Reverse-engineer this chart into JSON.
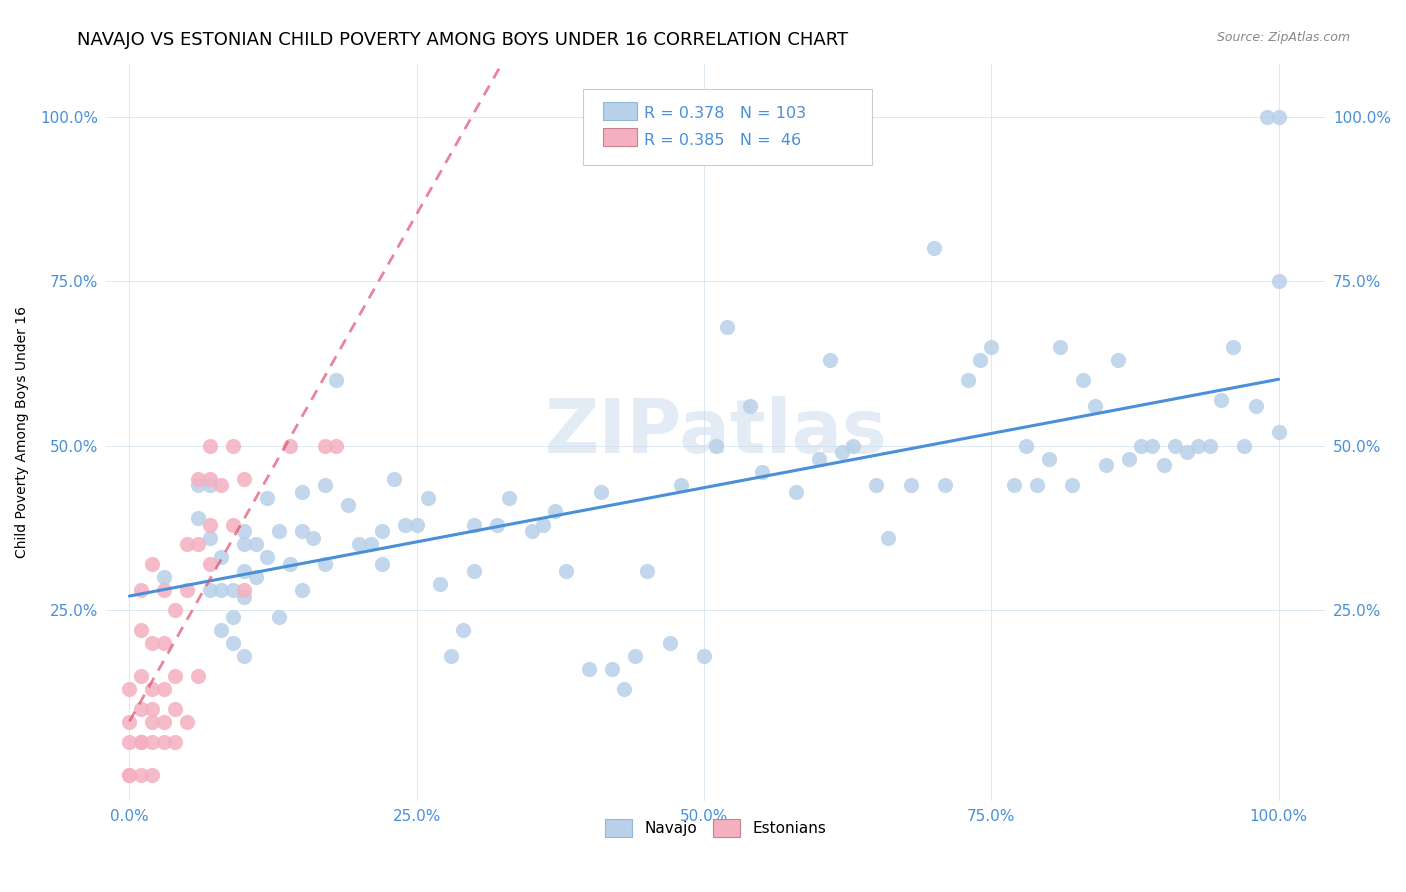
{
  "title": "NAVAJO VS ESTONIAN CHILD POVERTY AMONG BOYS UNDER 16 CORRELATION CHART",
  "source": "Source: ZipAtlas.com",
  "ylabel": "Child Poverty Among Boys Under 16",
  "xlim": [
    -0.02,
    1.04
  ],
  "ylim": [
    -0.04,
    1.08
  ],
  "xtick_labels": [
    "0.0%",
    "25.0%",
    "50.0%",
    "75.0%",
    "100.0%"
  ],
  "xtick_positions": [
    0,
    0.25,
    0.5,
    0.75,
    1.0
  ],
  "ytick_labels": [
    "25.0%",
    "50.0%",
    "75.0%",
    "100.0%"
  ],
  "ytick_positions": [
    0.25,
    0.5,
    0.75,
    1.0
  ],
  "navajo_R": 0.378,
  "navajo_N": 103,
  "estonian_R": 0.385,
  "estonian_N": 46,
  "navajo_color": "#b8d0e8",
  "estonian_color": "#f5b0c0",
  "trend_navajo_color": "#4a90d9",
  "trend_estonian_color": "#e05070",
  "watermark": "ZIPatlas",
  "title_fontsize": 13,
  "navajo_x": [
    0.03,
    0.06,
    0.06,
    0.07,
    0.07,
    0.07,
    0.08,
    0.08,
    0.08,
    0.09,
    0.09,
    0.09,
    0.1,
    0.1,
    0.1,
    0.1,
    0.1,
    0.11,
    0.11,
    0.12,
    0.12,
    0.13,
    0.13,
    0.14,
    0.15,
    0.15,
    0.15,
    0.16,
    0.17,
    0.17,
    0.18,
    0.19,
    0.2,
    0.21,
    0.22,
    0.22,
    0.23,
    0.24,
    0.25,
    0.26,
    0.27,
    0.28,
    0.29,
    0.3,
    0.3,
    0.32,
    0.33,
    0.35,
    0.36,
    0.37,
    0.38,
    0.4,
    0.41,
    0.42,
    0.43,
    0.44,
    0.45,
    0.47,
    0.48,
    0.5,
    0.51,
    0.52,
    0.54,
    0.55,
    0.58,
    0.6,
    0.61,
    0.62,
    0.63,
    0.65,
    0.66,
    0.68,
    0.7,
    0.71,
    0.73,
    0.74,
    0.75,
    0.77,
    0.78,
    0.79,
    0.8,
    0.81,
    0.82,
    0.83,
    0.84,
    0.85,
    0.86,
    0.87,
    0.88,
    0.89,
    0.9,
    0.91,
    0.92,
    0.93,
    0.94,
    0.95,
    0.96,
    0.97,
    0.98,
    0.99,
    1.0,
    1.0,
    1.0
  ],
  "navajo_y": [
    0.3,
    0.44,
    0.39,
    0.44,
    0.36,
    0.28,
    0.33,
    0.28,
    0.22,
    0.28,
    0.24,
    0.2,
    0.37,
    0.35,
    0.31,
    0.27,
    0.18,
    0.35,
    0.3,
    0.42,
    0.33,
    0.37,
    0.24,
    0.32,
    0.43,
    0.37,
    0.28,
    0.36,
    0.44,
    0.32,
    0.6,
    0.41,
    0.35,
    0.35,
    0.37,
    0.32,
    0.45,
    0.38,
    0.38,
    0.42,
    0.29,
    0.18,
    0.22,
    0.38,
    0.31,
    0.38,
    0.42,
    0.37,
    0.38,
    0.4,
    0.31,
    0.16,
    0.43,
    0.16,
    0.13,
    0.18,
    0.31,
    0.2,
    0.44,
    0.18,
    0.5,
    0.68,
    0.56,
    0.46,
    0.43,
    0.48,
    0.63,
    0.49,
    0.5,
    0.44,
    0.36,
    0.44,
    0.8,
    0.44,
    0.6,
    0.63,
    0.65,
    0.44,
    0.5,
    0.44,
    0.48,
    0.65,
    0.44,
    0.6,
    0.56,
    0.47,
    0.63,
    0.48,
    0.5,
    0.5,
    0.47,
    0.5,
    0.49,
    0.5,
    0.5,
    0.57,
    0.65,
    0.5,
    0.56,
    1.0,
    1.0,
    0.75,
    0.52
  ],
  "estonian_x": [
    0.0,
    0.0,
    0.0,
    0.0,
    0.0,
    0.01,
    0.01,
    0.01,
    0.01,
    0.01,
    0.01,
    0.01,
    0.02,
    0.02,
    0.02,
    0.02,
    0.02,
    0.02,
    0.02,
    0.03,
    0.03,
    0.03,
    0.03,
    0.03,
    0.04,
    0.04,
    0.04,
    0.04,
    0.05,
    0.05,
    0.05,
    0.06,
    0.06,
    0.06,
    0.07,
    0.07,
    0.07,
    0.07,
    0.08,
    0.09,
    0.09,
    0.1,
    0.1,
    0.14,
    0.17,
    0.18
  ],
  "estonian_y": [
    0.0,
    0.0,
    0.05,
    0.08,
    0.13,
    0.0,
    0.05,
    0.05,
    0.1,
    0.15,
    0.22,
    0.28,
    0.0,
    0.05,
    0.08,
    0.1,
    0.13,
    0.2,
    0.32,
    0.05,
    0.08,
    0.13,
    0.2,
    0.28,
    0.05,
    0.1,
    0.15,
    0.25,
    0.08,
    0.28,
    0.35,
    0.15,
    0.35,
    0.45,
    0.32,
    0.38,
    0.45,
    0.5,
    0.44,
    0.38,
    0.5,
    0.28,
    0.45,
    0.5,
    0.5,
    0.5
  ]
}
